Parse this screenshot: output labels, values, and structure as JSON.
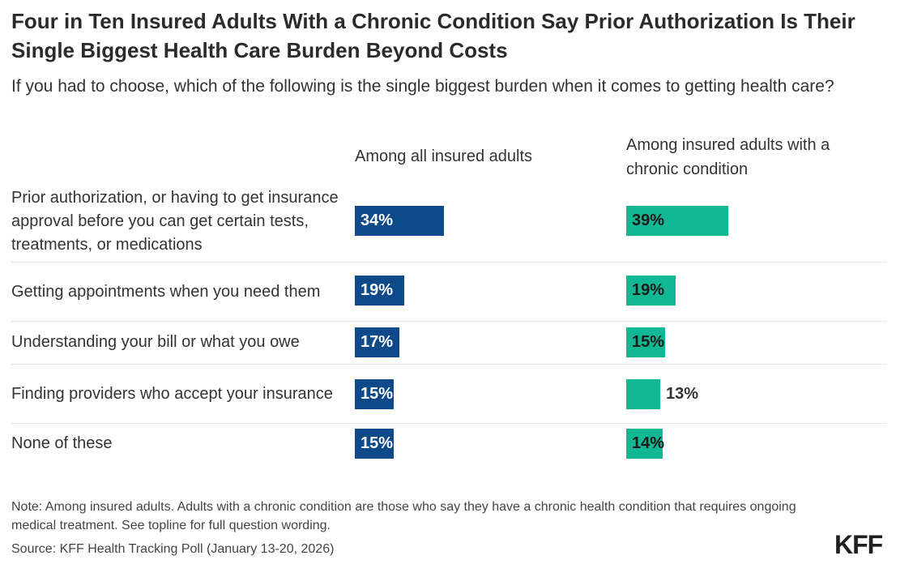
{
  "title": "Four in Ten Insured Adults With a Chronic Condition Say Prior Authorization Is Their Single Biggest Health Care Burden Beyond Costs",
  "subtitle": "If you had to choose, which of the following is the single biggest burden when it comes to getting health care?",
  "chart_data": {
    "type": "bar",
    "orientation": "horizontal",
    "categories": [
      "Prior authorization, or having to get insurance approval before you can get certain tests, treatments, or medications",
      "Getting appointments when you need them",
      "Understanding your bill or what you owe",
      "Finding providers who accept your insurance",
      "None of these"
    ],
    "series": [
      {
        "name": "Among all insured adults",
        "values": [
          34,
          19,
          17,
          15,
          15
        ],
        "labels": [
          "34%",
          "19%",
          "17%",
          "15%",
          "15%"
        ],
        "color": "#0e4a8a"
      },
      {
        "name": "Among insured adults with a chronic condition",
        "values": [
          39,
          19,
          15,
          13,
          14
        ],
        "labels": [
          "39%",
          "19%",
          "15%",
          "13%",
          "14%"
        ],
        "color": "#12b893"
      }
    ],
    "value_unit": "%",
    "grid": false,
    "legend": "column headers above each panel"
  },
  "note": "Note: Among insured adults. Adults with a chronic condition are those who say they have a chronic health condition that requires ongoing medical treatment. See topline for full question wording.",
  "source": "Source: KFF Health Tracking Poll (January 13-20, 2026)",
  "logo": "KFF"
}
